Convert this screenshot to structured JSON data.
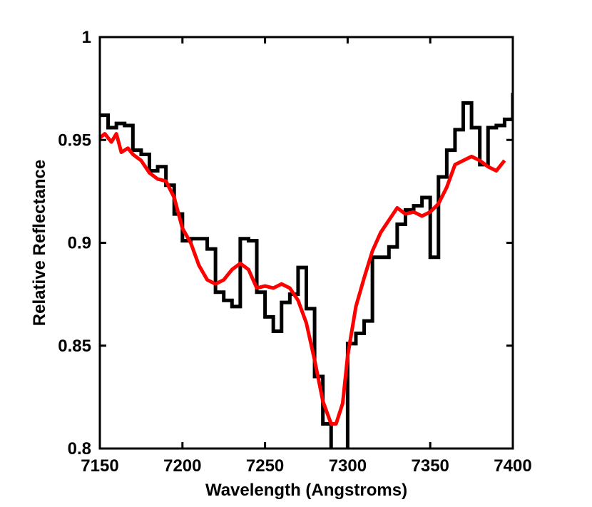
{
  "chart_data": {
    "type": "line",
    "title": "",
    "xlabel": "Wavelength (Angstroms)",
    "ylabel": "Relative Reflectance",
    "xlim": [
      7150,
      7400
    ],
    "ylim": [
      0.8,
      1.0
    ],
    "xticks": [
      7150,
      7200,
      7250,
      7300,
      7350,
      7400
    ],
    "xtick_labels": [
      "7150",
      "7200",
      "7250",
      "7300",
      "7350",
      "7400"
    ],
    "yticks": [
      0.8,
      0.85,
      0.9,
      0.95,
      1.0
    ],
    "ytick_labels": [
      "0.8",
      "0.85",
      "0.9",
      "0.95",
      "1"
    ],
    "grid": false,
    "legend": "none",
    "series": [
      {
        "color": "#000000",
        "style": "step",
        "x": [
          7150,
          7155,
          7160,
          7165,
          7170,
          7175,
          7180,
          7185,
          7190,
          7195,
          7200,
          7205,
          7210,
          7215,
          7220,
          7225,
          7230,
          7235,
          7240,
          7245,
          7250,
          7255,
          7260,
          7265,
          7270,
          7275,
          7280,
          7285,
          7290,
          7295,
          7300,
          7305,
          7310,
          7315,
          7320,
          7325,
          7330,
          7335,
          7340,
          7345,
          7350,
          7355,
          7360,
          7365,
          7370,
          7375,
          7380,
          7385,
          7390,
          7395,
          7400
        ],
        "y": [
          0.962,
          0.956,
          0.958,
          0.957,
          0.945,
          0.943,
          0.935,
          0.937,
          0.928,
          0.914,
          0.901,
          0.902,
          0.902,
          0.897,
          0.876,
          0.872,
          0.869,
          0.902,
          0.901,
          0.876,
          0.864,
          0.857,
          0.871,
          0.875,
          0.888,
          0.868,
          0.835,
          0.812,
          0.793,
          0.798,
          0.851,
          0.856,
          0.862,
          0.893,
          0.893,
          0.898,
          0.909,
          0.916,
          0.918,
          0.922,
          0.893,
          0.932,
          0.945,
          0.955,
          0.968,
          0.956,
          0.938,
          0.956,
          0.957,
          0.96,
          0.972
        ]
      },
      {
        "color": "#ff0000",
        "style": "line",
        "x": [
          7150,
          7153,
          7157,
          7160,
          7163,
          7167,
          7170,
          7175,
          7180,
          7185,
          7190,
          7195,
          7200,
          7205,
          7210,
          7215,
          7220,
          7225,
          7230,
          7235,
          7240,
          7245,
          7250,
          7255,
          7260,
          7265,
          7270,
          7275,
          7280,
          7285,
          7290,
          7293,
          7297,
          7300,
          7305,
          7310,
          7315,
          7320,
          7325,
          7330,
          7335,
          7340,
          7345,
          7350,
          7355,
          7360,
          7365,
          7370,
          7375,
          7380,
          7385,
          7390,
          7395
        ],
        "y": [
          0.951,
          0.953,
          0.949,
          0.953,
          0.944,
          0.946,
          0.943,
          0.94,
          0.934,
          0.931,
          0.93,
          0.922,
          0.907,
          0.9,
          0.889,
          0.882,
          0.88,
          0.882,
          0.887,
          0.89,
          0.887,
          0.878,
          0.879,
          0.878,
          0.88,
          0.878,
          0.872,
          0.861,
          0.843,
          0.823,
          0.812,
          0.812,
          0.822,
          0.845,
          0.869,
          0.883,
          0.896,
          0.905,
          0.911,
          0.917,
          0.914,
          0.915,
          0.913,
          0.915,
          0.919,
          0.927,
          0.938,
          0.94,
          0.942,
          0.94,
          0.937,
          0.935,
          0.94
        ]
      }
    ]
  }
}
